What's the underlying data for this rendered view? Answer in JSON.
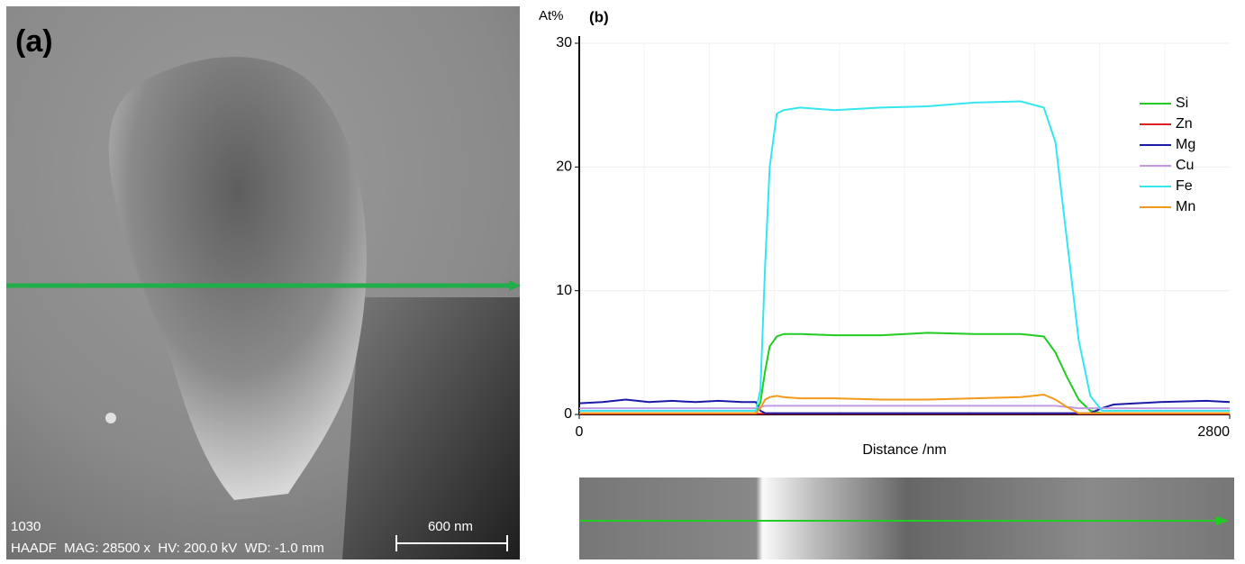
{
  "panel_a": {
    "label": "(a)",
    "sample": "1030",
    "info": "HAADF  MAG: 28500 x  HV: 200.0 kV  WD: -1.0 mm",
    "scale_bar": "600 nm"
  },
  "chart_data": {
    "type": "line",
    "panel_label": "(b)",
    "y_label": "At%",
    "x_label": "Distance /nm",
    "x": [
      0,
      100,
      200,
      300,
      400,
      500,
      600,
      700,
      760,
      780,
      800,
      820,
      850,
      880,
      950,
      1100,
      1300,
      1500,
      1700,
      1900,
      2000,
      2050,
      2100,
      2150,
      2200,
      2250,
      2300,
      2500,
      2700,
      2800
    ],
    "xlim": [
      0,
      2800
    ],
    "xticks": [
      0,
      2800
    ],
    "ylim": [
      0,
      30
    ],
    "yticks": [
      0,
      10,
      20,
      30
    ],
    "grid": true,
    "legend": "upper right",
    "series": [
      {
        "name": "Si",
        "color": "#22cc22",
        "values": [
          0.1,
          0.1,
          0.1,
          0.1,
          0.1,
          0.1,
          0.1,
          0.1,
          0.1,
          1,
          3.5,
          5.5,
          6.3,
          6.5,
          6.5,
          6.4,
          6.4,
          6.6,
          6.5,
          6.5,
          6.3,
          5,
          3,
          1.2,
          0.3,
          0.1,
          0.1,
          0.1,
          0.1,
          0.1
        ]
      },
      {
        "name": "Zn",
        "color": "#e02020",
        "values": [
          0.05,
          0.05,
          0.05,
          0.05,
          0.05,
          0.05,
          0.05,
          0.05,
          0.05,
          0.05,
          0.05,
          0.05,
          0.05,
          0.05,
          0.05,
          0.05,
          0.05,
          0.05,
          0.05,
          0.05,
          0.05,
          0.05,
          0.05,
          0.05,
          0.05,
          0.05,
          0.05,
          0.05,
          0.05,
          0.05
        ]
      },
      {
        "name": "Mg",
        "color": "#1a1aa8",
        "values": [
          0.9,
          1,
          1.2,
          1,
          1.1,
          1,
          1.1,
          1,
          1,
          0.3,
          0.1,
          0.1,
          0.1,
          0.1,
          0.1,
          0.1,
          0.1,
          0.1,
          0.1,
          0.1,
          0.1,
          0.1,
          0.1,
          0.1,
          0.1,
          0.5,
          0.8,
          1,
          1.1,
          1
        ]
      },
      {
        "name": "Cu",
        "color": "#c49ae0",
        "values": [
          0.5,
          0.5,
          0.5,
          0.5,
          0.5,
          0.5,
          0.5,
          0.5,
          0.5,
          0.6,
          0.7,
          0.7,
          0.7,
          0.7,
          0.7,
          0.7,
          0.7,
          0.7,
          0.7,
          0.7,
          0.7,
          0.7,
          0.6,
          0.5,
          0.5,
          0.5,
          0.5,
          0.5,
          0.5,
          0.5
        ]
      },
      {
        "name": "Fe",
        "color": "#33e6f0",
        "values": [
          0.3,
          0.3,
          0.3,
          0.3,
          0.3,
          0.3,
          0.3,
          0.3,
          0.3,
          2,
          12,
          20,
          24.3,
          24.6,
          24.8,
          24.6,
          24.8,
          24.9,
          25.2,
          25.3,
          24.8,
          22,
          14,
          6,
          1.5,
          0.3,
          0.3,
          0.3,
          0.3,
          0.3
        ]
      },
      {
        "name": "Mn",
        "color": "#f39a1a",
        "values": [
          0.1,
          0.1,
          0.1,
          0.1,
          0.1,
          0.1,
          0.1,
          0.1,
          0.1,
          0.5,
          1.2,
          1.4,
          1.5,
          1.4,
          1.3,
          1.3,
          1.2,
          1.2,
          1.3,
          1.4,
          1.6,
          1.2,
          0.6,
          0.1,
          0.1,
          0.1,
          0.1,
          0.1,
          0.1,
          0.1
        ]
      }
    ]
  }
}
